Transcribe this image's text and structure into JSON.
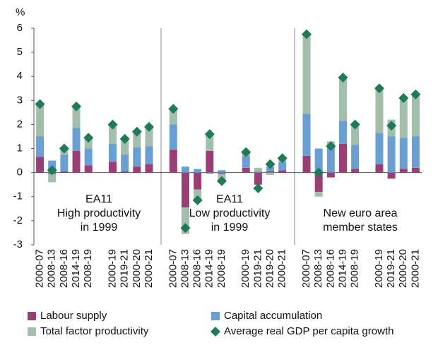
{
  "chart_data": {
    "type": "stacked_bar_with_markers",
    "y_unit_label": "%",
    "categories": [
      "2000-07",
      "2008-13",
      "2008-16",
      "2014-19",
      "2008-19",
      null,
      "2000-19",
      "2019-21",
      "2000-20",
      "2000-21",
      null,
      "2000-07",
      "2008-13",
      "2008-16",
      "2014-19",
      "2008-19",
      null,
      "2000-19",
      "2019-21",
      "2019-20",
      "2000-21",
      null,
      "2000-07",
      "2008-13",
      "2008-16",
      "2014-19",
      "2008-19",
      null,
      "2000-19",
      "2019-21",
      "2000-20",
      "2000-21"
    ],
    "series": [
      {
        "name": "Labour supply",
        "color": "#9b3e74",
        "kind": "bar",
        "values": [
          0.65,
          -0.05,
          0.05,
          0.9,
          0.3,
          null,
          0.45,
          0.05,
          0.25,
          0.35,
          null,
          0.95,
          -1.45,
          -0.7,
          0.9,
          -0.05,
          null,
          0.2,
          -0.5,
          0.05,
          0.1,
          null,
          0.7,
          -0.8,
          -0.2,
          1.2,
          0.15,
          null,
          0.35,
          -0.25,
          0.15,
          0.2
        ]
      },
      {
        "name": "Capital accumulation",
        "color": "#6a9fd4",
        "kind": "bar",
        "values": [
          0.85,
          0.5,
          0.7,
          0.95,
          0.7,
          null,
          0.75,
          0.7,
          0.8,
          0.75,
          null,
          1.05,
          0.25,
          0.15,
          -0.05,
          0.1,
          null,
          0.5,
          0.05,
          0.2,
          0.35,
          null,
          1.75,
          1.0,
          1.15,
          0.95,
          1.0,
          null,
          1.3,
          1.5,
          1.3,
          1.3
        ]
      },
      {
        "name": "Total factor productivity",
        "color": "#a3bfac",
        "kind": "bar",
        "values": [
          1.35,
          -0.35,
          0.25,
          0.95,
          0.45,
          null,
          0.8,
          0.65,
          0.65,
          0.8,
          null,
          0.65,
          -1.1,
          -0.5,
          0.7,
          -0.3,
          null,
          0.15,
          0.15,
          -0.1,
          0.1,
          null,
          3.3,
          -0.2,
          0.15,
          1.8,
          0.8,
          null,
          1.8,
          0.7,
          1.6,
          1.75
        ]
      },
      {
        "name": "Average real GDP per capita growth",
        "color": "#1e7a58",
        "kind": "marker",
        "values": [
          2.85,
          0.1,
          1.0,
          2.75,
          1.45,
          null,
          2.0,
          1.4,
          1.7,
          1.9,
          null,
          2.65,
          -2.3,
          -1.15,
          1.6,
          -0.35,
          null,
          0.85,
          -0.65,
          0.35,
          0.6,
          null,
          5.75,
          0.0,
          1.1,
          3.95,
          2.0,
          null,
          3.5,
          1.95,
          3.1,
          3.25
        ]
      }
    ],
    "ylim": [
      -3,
      6
    ],
    "yticks": [
      -3,
      -2,
      -1,
      0,
      1,
      2,
      3,
      4,
      5,
      6
    ],
    "annotations": [
      {
        "lines": [
          "EA11",
          "High productivity",
          "in 1999"
        ]
      },
      {
        "lines": [
          "EA11",
          "Low productivity",
          "in 1999"
        ]
      },
      {
        "lines": [
          "New euro area",
          "member states"
        ]
      }
    ]
  }
}
